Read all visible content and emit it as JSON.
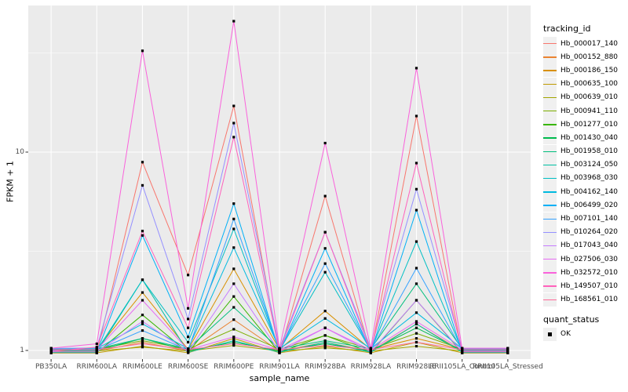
{
  "figure": {
    "background": "#FFFFFF",
    "panel_background": "#EBEBEB",
    "grid_color": "#FFFFFF",
    "tick_color": "#333333",
    "axis_text_color": "#4D4D4D",
    "point_color": "#000000"
  },
  "legend": {
    "tracking_title": "tracking_id",
    "quant_title": "quant_status",
    "ok_label": "OK"
  },
  "chart_data": {
    "type": "line",
    "title": "",
    "xlabel": "sample_name",
    "ylabel": "FPKM + 1",
    "y_scale": "log10",
    "y_ticks": [
      1,
      10
    ],
    "ylim": [
      0.9,
      55
    ],
    "grid": "on",
    "legend_position": "right",
    "point_marker": "black-square",
    "quant_status_values": [
      "OK"
    ],
    "categories": [
      "PB350LA",
      "RRIM600LA",
      "RRIM600LE",
      "RRIM600SE",
      "RRIM600PE",
      "RRIM901LA",
      "RRIM928BA",
      "RRIM928LA",
      "RRIM928LE",
      "RRII105LA_Control",
      "RRII105LA_Stressed"
    ],
    "series": [
      {
        "name": "Hb_000017_140",
        "color": "#F8766D",
        "values": [
          0.97,
          0.97,
          8.9,
          2.4,
          17.1,
          0.97,
          6.0,
          0.97,
          15.2,
          0.97,
          0.97
        ]
      },
      {
        "name": "Hb_000152_880",
        "color": "#EA8331",
        "values": [
          0.991,
          0.991,
          1.1,
          0.991,
          1.43,
          0.991,
          1.1,
          0.991,
          1.36,
          0.991,
          0.991
        ]
      },
      {
        "name": "Hb_000186_150",
        "color": "#D89000",
        "values": [
          1.012,
          1.012,
          1.96,
          1.012,
          2.58,
          1.012,
          1.58,
          1.012,
          1.15,
          1.012,
          1.012
        ]
      },
      {
        "name": "Hb_000635_100",
        "color": "#C09B00",
        "values": [
          0.973,
          0.973,
          1.05,
          0.973,
          1.15,
          0.973,
          1.05,
          0.973,
          1.1,
          0.973,
          0.973
        ]
      },
      {
        "name": "Hb_000639_010",
        "color": "#A3A500",
        "values": [
          0.994,
          0.994,
          1.04,
          0.994,
          1.06,
          0.994,
          1.03,
          0.994,
          1.05,
          0.994,
          0.994
        ]
      },
      {
        "name": "Hb_000941_110",
        "color": "#7CAE00",
        "values": [
          1.015,
          1.015,
          1.12,
          1.015,
          1.28,
          1.015,
          1.19,
          1.015,
          1.22,
          1.015,
          1.015
        ]
      },
      {
        "name": "Hb_001277_010",
        "color": "#39B600",
        "values": [
          0.976,
          0.976,
          1.51,
          0.976,
          1.87,
          0.976,
          1.19,
          0.976,
          1.79,
          0.976,
          0.976
        ]
      },
      {
        "name": "Hb_001430_040",
        "color": "#00BB4E",
        "values": [
          0.997,
          0.997,
          1.15,
          0.997,
          1.1,
          0.997,
          1.08,
          0.997,
          1.3,
          0.997,
          0.997
        ]
      },
      {
        "name": "Hb_001958_010",
        "color": "#00BF7D",
        "values": [
          1.018,
          1.018,
          1.15,
          1.018,
          1.65,
          1.018,
          1.12,
          1.018,
          2.17,
          1.018,
          1.018
        ]
      },
      {
        "name": "Hb_003124_050",
        "color": "#00C1A3",
        "values": [
          0.979,
          0.979,
          2.27,
          0.979,
          1.12,
          0.979,
          1.1,
          0.979,
          1.36,
          0.979,
          0.979
        ]
      },
      {
        "name": "Hb_003968_030",
        "color": "#00BFC4",
        "values": [
          1.0,
          1.0,
          2.27,
          1.1,
          4.1,
          1.0,
          2.48,
          1.0,
          3.54,
          1.0,
          1.0
        ]
      },
      {
        "name": "Hb_004162_140",
        "color": "#00BAE0",
        "values": [
          1.021,
          1.021,
          1.36,
          1.021,
          3.3,
          1.021,
          1.45,
          1.021,
          1.55,
          1.021,
          1.021
        ]
      },
      {
        "name": "Hb_006499_020",
        "color": "#00B0F6",
        "values": [
          0.982,
          0.982,
          3.8,
          1.17,
          5.5,
          0.982,
          3.27,
          0.982,
          5.1,
          0.982,
          0.982
        ]
      },
      {
        "name": "Hb_007101_140",
        "color": "#35A2FF",
        "values": [
          1.003,
          1.003,
          1.26,
          1.003,
          4.6,
          1.003,
          2.74,
          1.003,
          2.6,
          1.003,
          1.003
        ]
      },
      {
        "name": "Hb_010264_020",
        "color": "#9590FF",
        "values": [
          1.024,
          1.03,
          6.8,
          1.44,
          14.0,
          1.024,
          3.95,
          1.024,
          6.5,
          1.024,
          1.024
        ]
      },
      {
        "name": "Hb_017043_040",
        "color": "#C77CFF",
        "values": [
          0.985,
          0.985,
          1.4,
          0.985,
          2.17,
          0.985,
          1.3,
          0.985,
          1.79,
          0.985,
          0.985
        ]
      },
      {
        "name": "Hb_027506_030",
        "color": "#E76BF3",
        "values": [
          1.006,
          1.006,
          1.79,
          1.006,
          1.17,
          1.006,
          1.3,
          1.006,
          1.4,
          1.006,
          1.006
        ]
      },
      {
        "name": "Hb_032572_010",
        "color": "#FA62DB",
        "values": [
          1.027,
          1.08,
          32.4,
          1.63,
          45.7,
          1.027,
          11.1,
          1.027,
          26.5,
          1.027,
          1.027
        ]
      },
      {
        "name": "Hb_149507_010",
        "color": "#FF62BC",
        "values": [
          0.988,
          1.04,
          4.0,
          1.3,
          11.9,
          0.988,
          3.95,
          0.988,
          8.8,
          0.988,
          0.988
        ]
      },
      {
        "name": "Hb_168561_010",
        "color": "#FF6A98",
        "values": [
          1.009,
          1.009,
          1.08,
          1.009,
          1.08,
          1.009,
          1.06,
          1.009,
          1.1,
          1.009,
          1.009
        ]
      }
    ]
  }
}
